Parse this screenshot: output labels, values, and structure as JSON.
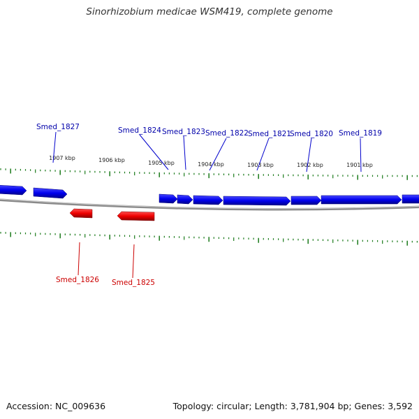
{
  "title": "Sinorhizobium medicae WSM419, complete genome",
  "footer": {
    "accession": "Accession: NC_009636",
    "summary": "Topology: circular; Length: 3,781,904 bp; Genes: 3,592"
  },
  "colors": {
    "forward_gene": "#0000ee",
    "reverse_gene": "#ee0000",
    "forward_label": "#0000aa",
    "reverse_label": "#cc0000",
    "ruler_tick": "#1a7a1a",
    "backbone": "#8a8a8a"
  },
  "ruler": {
    "kbp_labels": [
      "1907 kbp",
      "1906 kbp",
      "1905 kbp",
      "1904 kbp",
      "1903 kbp",
      "1902 kbp",
      "1901 kbp"
    ]
  },
  "genes": {
    "forward": [
      "Smed_1827",
      "Smed_1824",
      "Smed_1823",
      "Smed_1822",
      "Smed_1821",
      "Smed_1820",
      "Smed_1819"
    ],
    "reverse": [
      "Smed_1826",
      "Smed_1825"
    ]
  }
}
